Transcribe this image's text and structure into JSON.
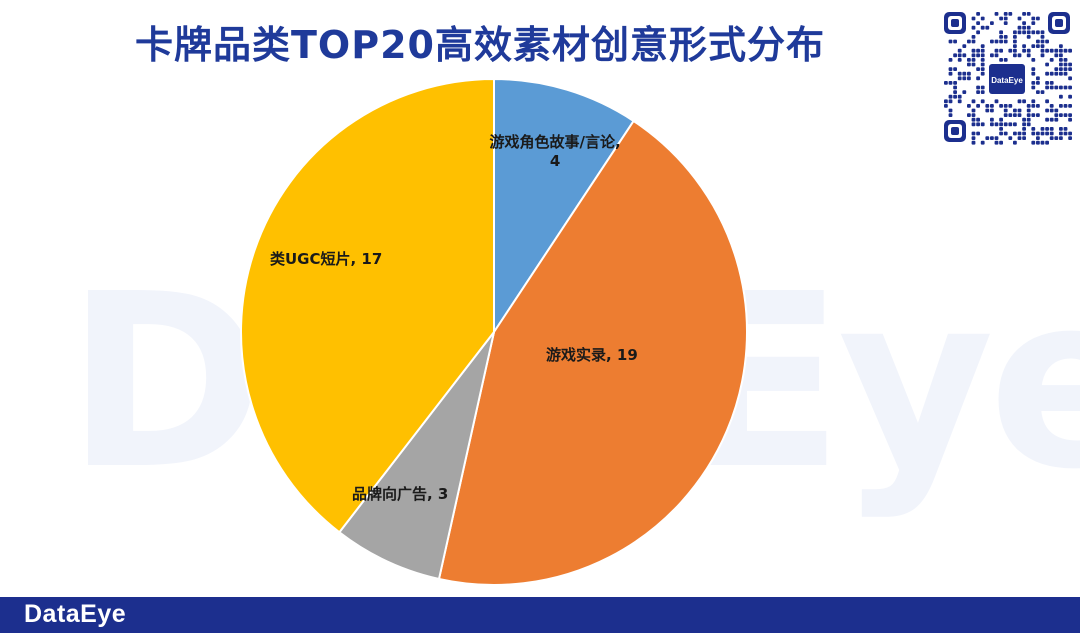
{
  "title": "卡牌品类TOP20高效素材创意形式分布",
  "watermark": "DataEye",
  "qr_logo": "DataEye",
  "footer": {
    "brand": "DataEye"
  },
  "chart_data": {
    "type": "pie",
    "title": "卡牌品类TOP20高效素材创意形式分布",
    "slices": [
      {
        "label": "游戏角色故事/言论",
        "value": 4,
        "color": "#5b9bd5",
        "text": "游戏角色故事/言论,\n4"
      },
      {
        "label": "游戏实录",
        "value": 19,
        "color": "#ed7d31",
        "text": "游戏实录, 19"
      },
      {
        "label": "品牌向广告",
        "value": 3,
        "color": "#a5a5a5",
        "text": "品牌向广告, 3"
      },
      {
        "label": "类UGC短片",
        "value": 17,
        "color": "#ffc000",
        "text": "类UGC短片, 17"
      }
    ],
    "start": "12 o'clock",
    "direction": "clockwise"
  }
}
